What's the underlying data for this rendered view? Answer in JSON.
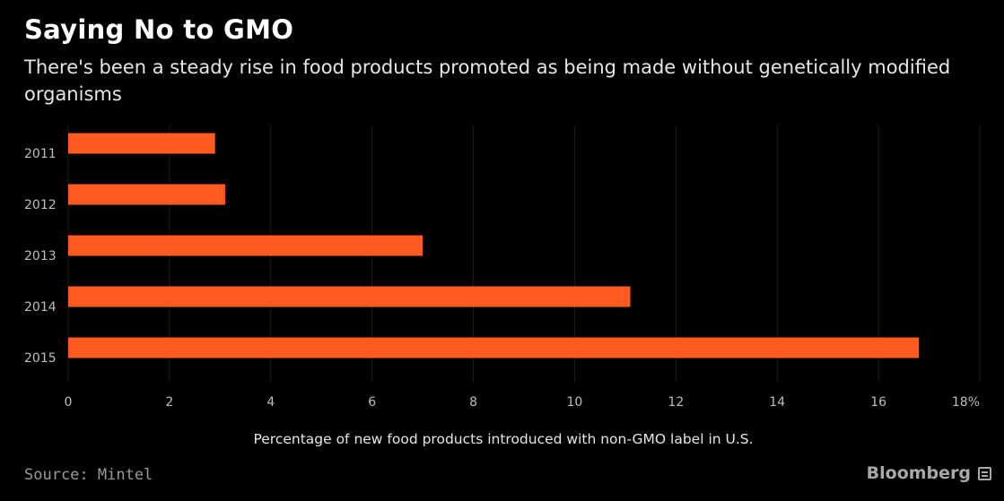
{
  "header": {
    "title": "Saying No to GMO",
    "subtitle": "There's been a steady rise in food products promoted as being made without genetically modified organisms"
  },
  "footer": {
    "source": "Source: Mintel",
    "brand": "Bloomberg",
    "brand_icon": "bloomberg-terminal-icon"
  },
  "colors": {
    "background": "#000000",
    "bar": "#ff5a1f",
    "grid": "#1c1c1c",
    "tick_text": "#bdbdbd"
  },
  "chart_data": {
    "type": "bar",
    "orientation": "horizontal",
    "title": "Saying No to GMO",
    "subtitle": "There's been a steady rise in food products promoted as being made without genetically modified organisms",
    "xlabel": "Percentage of new food products introduced with non-GMO label in U.S.",
    "ylabel": "",
    "categories": [
      "2011",
      "2012",
      "2013",
      "2014",
      "2015"
    ],
    "values": [
      2.9,
      3.1,
      7.0,
      11.1,
      16.8
    ],
    "xlim": [
      0,
      18
    ],
    "xticks": [
      0,
      2,
      4,
      6,
      8,
      10,
      12,
      14,
      16,
      18
    ],
    "xtick_labels": [
      "0",
      "2",
      "4",
      "6",
      "8",
      "10",
      "12",
      "14",
      "16",
      "18%"
    ],
    "grid": true,
    "legend": "none"
  }
}
